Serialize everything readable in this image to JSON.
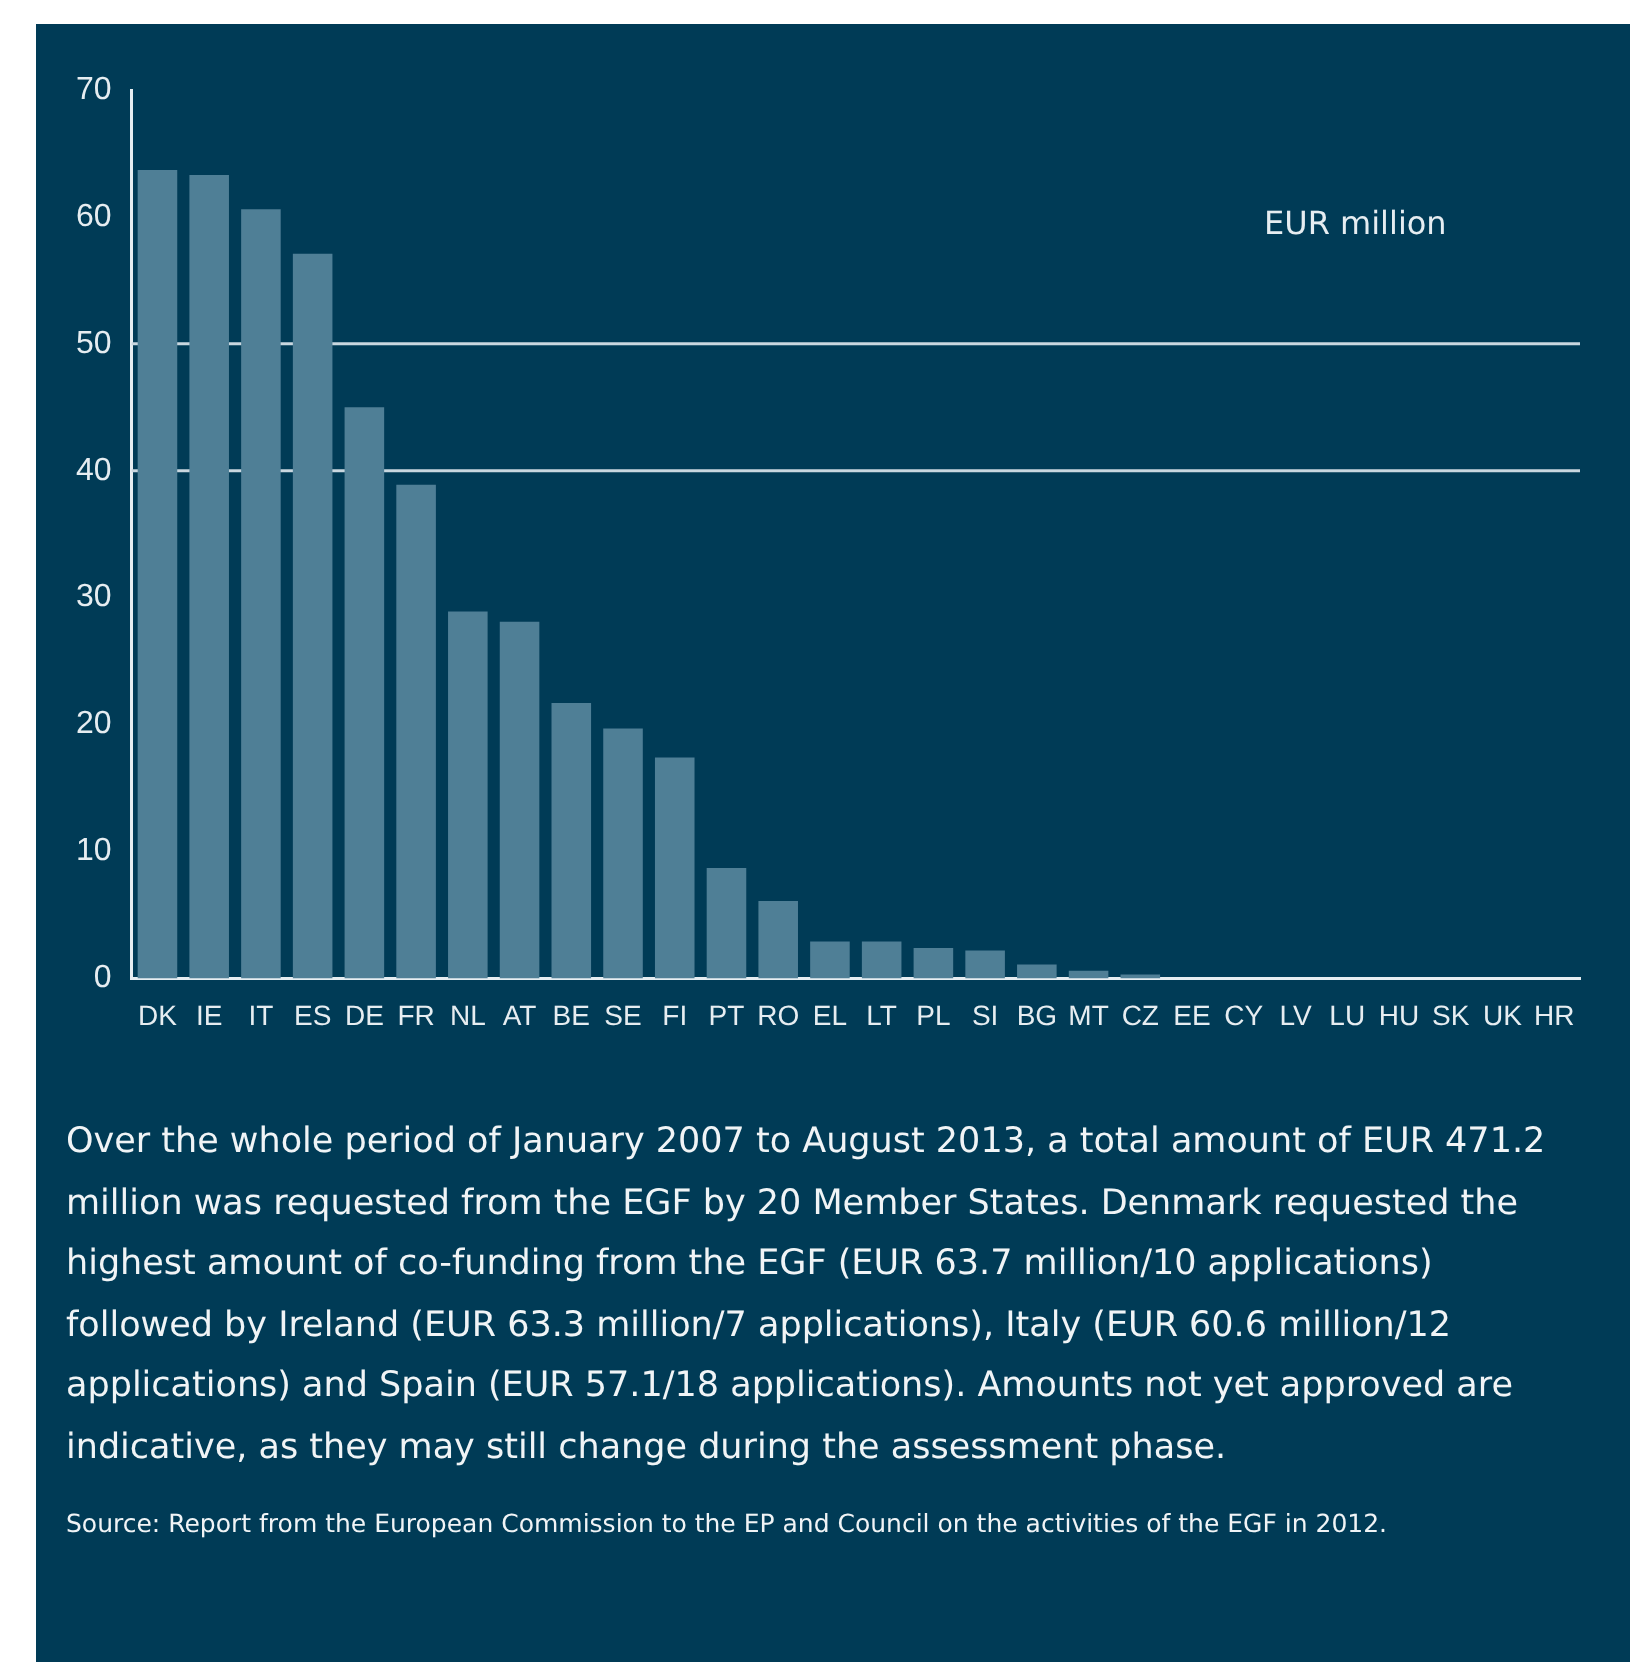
{
  "chart_data": {
    "type": "bar",
    "ylabel": "EUR million",
    "categories": [
      "DK",
      "IE",
      "IT",
      "ES",
      "DE",
      "FR",
      "NL",
      "AT",
      "BE",
      "SE",
      "FI",
      "PT",
      "RO",
      "EL",
      "LT",
      "PL",
      "SI",
      "BG",
      "MT",
      "CZ",
      "EE",
      "CY",
      "LV",
      "LU",
      "HU",
      "SK",
      "UK",
      "HR"
    ],
    "values": [
      63.7,
      63.3,
      60.6,
      57.1,
      45.0,
      38.9,
      28.9,
      28.1,
      21.7,
      19.7,
      17.4,
      8.7,
      6.1,
      2.9,
      2.9,
      2.4,
      2.2,
      1.1,
      0.6,
      0.3,
      0,
      0,
      0,
      0,
      0,
      0,
      0,
      0
    ],
    "color": "#4f7f96",
    "ylim": [
      0,
      70
    ],
    "yticks": [
      0,
      10,
      20,
      30,
      40,
      50,
      60,
      70
    ],
    "grid": false,
    "legend": false,
    "ref_lines": [
      {
        "axis": "y",
        "value": 40,
        "color": "#c9d7df"
      },
      {
        "axis": "y",
        "value": 50,
        "color": "#c9d7df"
      }
    ],
    "annotations": [
      "Over the whole period of January 2007 to August 2013, a total amount of EUR 471.2 million was requested from the EGF by 20 Member States. Denmark requested the highest amount of co-funding from the EGF (EUR 63.7 million/10 applications) followed by Ireland (EUR 63.3 million/7 applications), Italy (EUR 60.6 million/12 applications) and Spain (EUR 57.1/18 applications). Amounts not yet approved are indicative, as they may still change during the assessment phase.",
      "Source: Report from the European Commission to the EP and Council on the activities of the EGF in 2012."
    ]
  }
}
